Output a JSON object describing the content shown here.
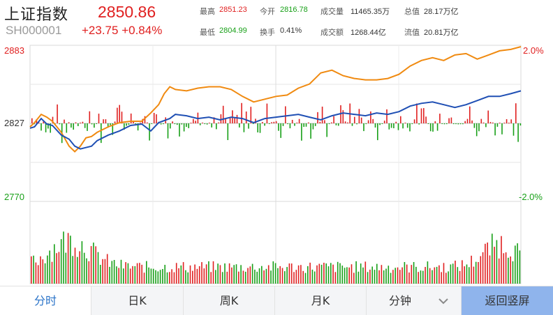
{
  "header": {
    "name": "上证指数",
    "code": "SH000001",
    "price": "2850.86",
    "change": "+23.75 +0.84%",
    "stats": [
      {
        "label": "最高",
        "value": "2851.23",
        "color": "red"
      },
      {
        "label": "今开",
        "value": "2816.78",
        "color": "green"
      },
      {
        "label": "成交量",
        "value": "11465.35万",
        "color": "normal"
      },
      {
        "label": "总值",
        "value": "28.17万亿",
        "color": "normal"
      },
      {
        "label": "最低",
        "value": "2804.99",
        "color": "green"
      },
      {
        "label": "换手",
        "value": "0.41%",
        "color": "normal"
      },
      {
        "label": "成交额",
        "value": "1268.44亿",
        "color": "normal"
      },
      {
        "label": "流值",
        "value": "20.81万亿",
        "color": "normal"
      }
    ]
  },
  "axis": {
    "y_top": "2883",
    "y_mid": "2827",
    "y_bottom": "2770",
    "pct_top": "2.0%",
    "pct_bottom": "-2.0%"
  },
  "tabs": {
    "intraday": "分时",
    "day_k": "日K",
    "week_k": "周K",
    "month_k": "月K",
    "minute": "分钟",
    "portrait": "返回竖屏"
  },
  "colors": {
    "up": "#e02020",
    "down": "#18a018",
    "price_line": "#1f4fb4",
    "avg_line": "#f08a10",
    "active_tab": "#2a73c8",
    "portrait_button": "#8fb4ec"
  },
  "chart_data": {
    "type": "line",
    "y_range": [
      2770,
      2883
    ],
    "pct_range": [
      -2.0,
      2.0
    ],
    "price_series_points": [
      [
        0,
        2823
      ],
      [
        4,
        2824
      ],
      [
        10,
        2830
      ],
      [
        15,
        2826
      ],
      [
        20,
        2825
      ],
      [
        28,
        2818
      ],
      [
        35,
        2815
      ],
      [
        40,
        2810
      ],
      [
        45,
        2808
      ],
      [
        50,
        2809
      ],
      [
        55,
        2810
      ],
      [
        60,
        2814
      ],
      [
        70,
        2818
      ],
      [
        80,
        2821
      ],
      [
        90,
        2825
      ],
      [
        100,
        2826
      ],
      [
        108,
        2821
      ],
      [
        115,
        2827
      ],
      [
        125,
        2830
      ],
      [
        130,
        2833
      ],
      [
        140,
        2832
      ],
      [
        150,
        2830
      ],
      [
        160,
        2831
      ],
      [
        170,
        2829
      ],
      [
        180,
        2831
      ],
      [
        190,
        2830
      ],
      [
        200,
        2827
      ],
      [
        210,
        2830
      ],
      [
        220,
        2831
      ],
      [
        230,
        2832
      ],
      [
        240,
        2833
      ],
      [
        250,
        2831
      ],
      [
        260,
        2829
      ],
      [
        270,
        2832
      ],
      [
        280,
        2834
      ],
      [
        290,
        2833
      ],
      [
        300,
        2832
      ],
      [
        310,
        2834
      ],
      [
        320,
        2833
      ],
      [
        330,
        2835
      ],
      [
        340,
        2839
      ],
      [
        350,
        2841
      ],
      [
        360,
        2842
      ],
      [
        370,
        2840
      ],
      [
        380,
        2838
      ],
      [
        390,
        2840
      ],
      [
        400,
        2843
      ],
      [
        410,
        2846
      ],
      [
        420,
        2846
      ],
      [
        430,
        2848
      ],
      [
        439,
        2850
      ]
    ],
    "avg_series_points": [
      [
        0,
        2824
      ],
      [
        4,
        2827
      ],
      [
        10,
        2833
      ],
      [
        15,
        2831
      ],
      [
        20,
        2828
      ],
      [
        28,
        2820
      ],
      [
        35,
        2810
      ],
      [
        40,
        2806
      ],
      [
        45,
        2810
      ],
      [
        50,
        2816
      ],
      [
        55,
        2817
      ],
      [
        60,
        2820
      ],
      [
        70,
        2824
      ],
      [
        80,
        2827
      ],
      [
        90,
        2828
      ],
      [
        100,
        2828
      ],
      [
        108,
        2834
      ],
      [
        115,
        2840
      ],
      [
        120,
        2848
      ],
      [
        125,
        2853
      ],
      [
        130,
        2851
      ],
      [
        140,
        2850
      ],
      [
        150,
        2852
      ],
      [
        160,
        2853
      ],
      [
        170,
        2853
      ],
      [
        180,
        2851
      ],
      [
        190,
        2846
      ],
      [
        200,
        2842
      ],
      [
        210,
        2844
      ],
      [
        220,
        2846
      ],
      [
        230,
        2847
      ],
      [
        240,
        2852
      ],
      [
        250,
        2855
      ],
      [
        260,
        2863
      ],
      [
        270,
        2865
      ],
      [
        280,
        2861
      ],
      [
        290,
        2859
      ],
      [
        300,
        2858
      ],
      [
        310,
        2858
      ],
      [
        320,
        2859
      ],
      [
        330,
        2862
      ],
      [
        340,
        2868
      ],
      [
        350,
        2872
      ],
      [
        360,
        2874
      ],
      [
        370,
        2872
      ],
      [
        380,
        2876
      ],
      [
        390,
        2877
      ],
      [
        400,
        2873
      ],
      [
        410,
        2876
      ],
      [
        420,
        2879
      ],
      [
        430,
        2880
      ],
      [
        439,
        2882
      ]
    ]
  }
}
